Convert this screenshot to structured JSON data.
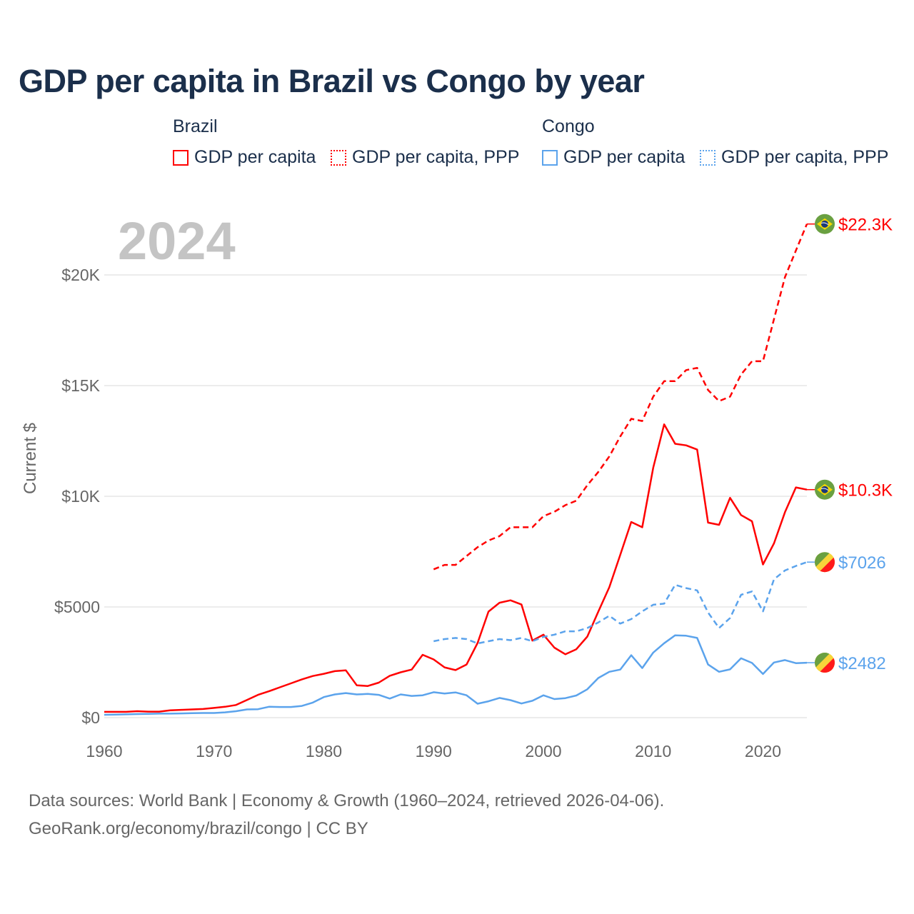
{
  "chart_data": {
    "type": "line",
    "title": "GDP per capita in Brazil vs Congo by year",
    "ylabel": "Current $",
    "xlabel": "",
    "year_label": "2024",
    "xlim": [
      1960,
      2024
    ],
    "ylim": [
      0,
      22300
    ],
    "x_ticks": [
      "1960",
      "1970",
      "1980",
      "1990",
      "2000",
      "2010",
      "2020"
    ],
    "x_tick_values": [
      1960,
      1970,
      1980,
      1990,
      2000,
      2010,
      2020
    ],
    "y_ticks": [
      "$0",
      "$5000",
      "$10K",
      "$15K",
      "$20K"
    ],
    "y_tick_values": [
      0,
      5000,
      10000,
      15000,
      20000
    ],
    "grid": true,
    "legend": {
      "placement": "top",
      "groups": [
        {
          "name": "Brazil",
          "items": [
            "GDP per capita",
            "GDP per capita, PPP"
          ]
        },
        {
          "name": "Congo",
          "items": [
            "GDP per capita",
            "GDP per capita, PPP"
          ]
        }
      ]
    },
    "colors": {
      "brazil": "#ff0000",
      "congo": "#5ba3ec"
    },
    "series": [
      {
        "name": "Brazil GDP per capita",
        "country": "Brazil",
        "style": "solid",
        "color": "#ff0000",
        "start": 1960,
        "end_label": "$10.3K",
        "flag": "brazil-flag",
        "values": [
          260,
          260,
          260,
          290,
          270,
          270,
          330,
          350,
          370,
          390,
          440,
          490,
          570,
          800,
          1030,
          1190,
          1370,
          1550,
          1730,
          1880,
          1980,
          2100,
          2140,
          1460,
          1430,
          1580,
          1890,
          2050,
          2170,
          2840,
          2630,
          2270,
          2150,
          2400,
          3370,
          4790,
          5190,
          5300,
          5110,
          3480,
          3750,
          3160,
          2860,
          3090,
          3660,
          4790,
          5890,
          7350,
          8840,
          8600,
          11290,
          13250,
          12370,
          12300,
          12110,
          8810,
          8710,
          9930,
          9150,
          8870,
          6920,
          7870,
          9280,
          10400,
          10300
        ]
      },
      {
        "name": "Brazil GDP per capita, PPP",
        "country": "Brazil",
        "style": "dashed",
        "color": "#ff0000",
        "start": 1990,
        "end_label": "$22.3K",
        "flag": "brazil-flag",
        "values": [
          6700,
          6900,
          6900,
          7300,
          7700,
          8000,
          8200,
          8600,
          8600,
          8600,
          9100,
          9300,
          9600,
          9800,
          10500,
          11100,
          11800,
          12700,
          13500,
          13400,
          14500,
          15200,
          15200,
          15700,
          15800,
          14800,
          14300,
          14500,
          15500,
          16100,
          16100,
          18000,
          19900,
          21100,
          22300
        ]
      },
      {
        "name": "Congo GDP per capita",
        "country": "Congo",
        "style": "solid",
        "color": "#5ba3ec",
        "start": 1960,
        "end_label": "$2482",
        "flag": "congo-flag",
        "values": [
          130,
          140,
          150,
          160,
          170,
          180,
          180,
          190,
          200,
          210,
          210,
          240,
          290,
          370,
          380,
          490,
          480,
          480,
          530,
          680,
          930,
          1050,
          1110,
          1050,
          1070,
          1030,
          860,
          1050,
          980,
          1010,
          1150,
          1090,
          1140,
          1010,
          630,
          740,
          890,
          790,
          640,
          760,
          1010,
          840,
          880,
          1000,
          1280,
          1790,
          2070,
          2170,
          2820,
          2240,
          2940,
          3360,
          3720,
          3700,
          3600,
          2400,
          2070,
          2180,
          2680,
          2470,
          1970,
          2490,
          2600,
          2460,
          2482
        ]
      },
      {
        "name": "Congo GDP per capita, PPP",
        "country": "Congo",
        "style": "dashed",
        "color": "#5ba3ec",
        "start": 1990,
        "end_label": "$7026",
        "flag": "congo-flag",
        "values": [
          3450,
          3550,
          3600,
          3550,
          3350,
          3450,
          3550,
          3500,
          3600,
          3450,
          3650,
          3750,
          3900,
          3900,
          4050,
          4300,
          4600,
          4250,
          4450,
          4800,
          5100,
          5150,
          6000,
          5850,
          5750,
          4750,
          4050,
          4500,
          5550,
          5700,
          4800,
          6250,
          6650,
          6850,
          7026
        ]
      }
    ]
  },
  "footer": {
    "line1": "Data sources: World Bank | Economy & Growth (1960–2024, retrieved 2026-04-06).",
    "line2": "GeoRank.org/economy/brazil/congo | CC BY"
  }
}
